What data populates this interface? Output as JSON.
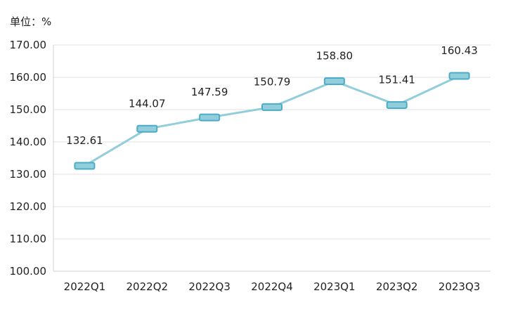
{
  "chart_data": {
    "type": "line",
    "unit_label": "单位：%",
    "categories": [
      "2022Q1",
      "2022Q2",
      "2022Q3",
      "2022Q4",
      "2023Q1",
      "2023Q2",
      "2023Q3"
    ],
    "values": [
      132.61,
      144.07,
      147.59,
      150.79,
      158.8,
      151.41,
      160.43
    ],
    "data_labels": [
      "132.61",
      "144.07",
      "147.59",
      "150.79",
      "158.80",
      "151.41",
      "160.43"
    ],
    "y_ticks": [
      "100.00",
      "110.00",
      "120.00",
      "130.00",
      "140.00",
      "150.00",
      "160.00",
      "170.00"
    ],
    "ylim": [
      100,
      170
    ],
    "grid": true,
    "legend": "none",
    "line_color": "#92cddc",
    "marker_fill": "#92cddc",
    "marker_stroke": "#4bacc6"
  }
}
